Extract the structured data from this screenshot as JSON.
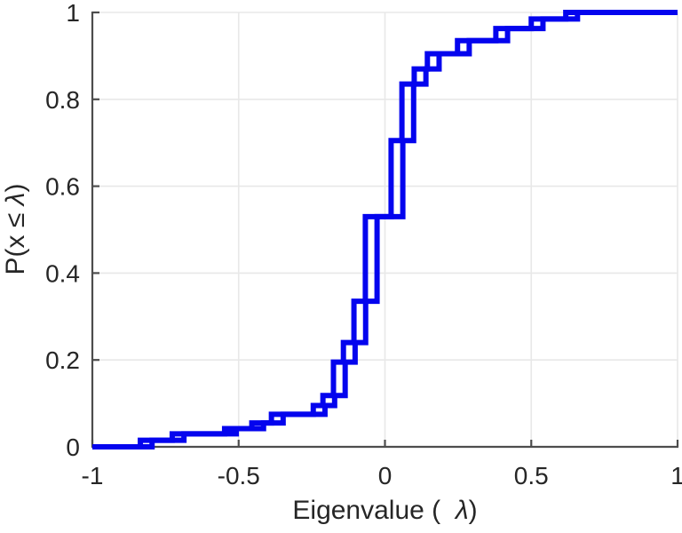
{
  "figure": {
    "background": "#ffffff",
    "xlabel_parts": {
      "prefix": "Eigenvalue (  ",
      "lambda": "λ",
      "suffix": ")"
    },
    "ylabel_parts": {
      "prefix": "P(x ≤ ",
      "lambda": "λ",
      "suffix": ")"
    }
  },
  "colors": {
    "line": "#0404ee",
    "spine": "#4d4d4d",
    "grid": "#e8e8e8",
    "tick_text": "#262626"
  },
  "chart_data": {
    "type": "line",
    "subtype": "empirical-cdf-stairs",
    "title": "",
    "xlabel": "Eigenvalue (  λ)",
    "ylabel": "P(x ≤ λ)",
    "xlim": [
      -1,
      1
    ],
    "ylim": [
      0,
      1
    ],
    "grid": true,
    "legend": null,
    "xticks": {
      "values": [
        -1,
        -0.5,
        0,
        0.5,
        1
      ],
      "labels": [
        "-1",
        "-0.5",
        "0",
        "0.5",
        "1"
      ]
    },
    "yticks": {
      "values": [
        0,
        0.2,
        0.4,
        0.6,
        0.8,
        1
      ],
      "labels": [
        "0",
        "0.2",
        "0.4",
        "0.6",
        "0.8",
        "1"
      ]
    },
    "series": [
      {
        "name": "eigenvalue-ecdf-1",
        "start_x": -1,
        "start_y": 0,
        "end_x": 1,
        "steps": [
          [
            -0.836,
            0.015
          ],
          [
            -0.727,
            0.03
          ],
          [
            -0.548,
            0.042
          ],
          [
            -0.455,
            0.055
          ],
          [
            -0.388,
            0.075
          ],
          [
            -0.245,
            0.095
          ],
          [
            -0.212,
            0.118
          ],
          [
            -0.176,
            0.195
          ],
          [
            -0.142,
            0.24
          ],
          [
            -0.106,
            0.335
          ],
          [
            -0.067,
            0.53
          ],
          [
            0.021,
            0.705
          ],
          [
            0.058,
            0.835
          ],
          [
            0.1,
            0.87
          ],
          [
            0.145,
            0.905
          ],
          [
            0.248,
            0.935
          ],
          [
            0.379,
            0.963
          ],
          [
            0.5,
            0.985
          ],
          [
            0.618,
            1.0
          ]
        ]
      },
      {
        "name": "eigenvalue-ecdf-2",
        "start_x": -1,
        "start_y": 0,
        "end_x": 1,
        "steps": [
          [
            -0.796,
            0.015
          ],
          [
            -0.687,
            0.03
          ],
          [
            -0.508,
            0.042
          ],
          [
            -0.415,
            0.055
          ],
          [
            -0.348,
            0.075
          ],
          [
            -0.205,
            0.095
          ],
          [
            -0.172,
            0.118
          ],
          [
            -0.136,
            0.195
          ],
          [
            -0.102,
            0.24
          ],
          [
            -0.066,
            0.335
          ],
          [
            -0.027,
            0.53
          ],
          [
            0.061,
            0.705
          ],
          [
            0.098,
            0.835
          ],
          [
            0.14,
            0.87
          ],
          [
            0.185,
            0.905
          ],
          [
            0.288,
            0.935
          ],
          [
            0.419,
            0.963
          ],
          [
            0.54,
            0.985
          ],
          [
            0.658,
            1.0
          ]
        ]
      }
    ]
  }
}
